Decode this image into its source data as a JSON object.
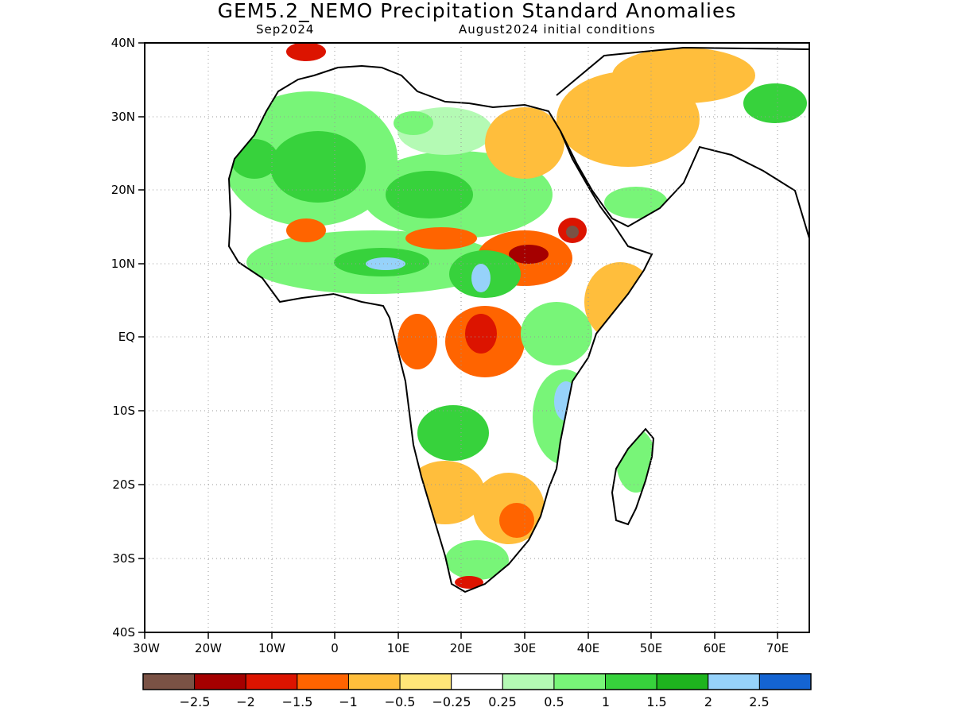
{
  "title": "GEM5.2_NEMO Precipitation Standard Anomalies",
  "subtitle_left": "Sep2024",
  "subtitle_right": "August2024 initial conditions",
  "map": {
    "lat_labels": [
      "40N",
      "30N",
      "20N",
      "10N",
      "EQ",
      "10S",
      "20S",
      "30S",
      "40S"
    ],
    "lon_labels": [
      "30W",
      "20W",
      "10W",
      "0",
      "10E",
      "20E",
      "30E",
      "40E",
      "50E",
      "60E",
      "70E"
    ]
  },
  "colorbar": {
    "colors": [
      "#7a5245",
      "#a50000",
      "#dc1400",
      "#ff6400",
      "#ffbe3c",
      "#ffe678",
      "#ffffff",
      "#b4fab4",
      "#78f578",
      "#37d23c",
      "#1eb41e",
      "#96d2fa",
      "#1464d2"
    ],
    "labels": [
      "−2.5",
      "−2",
      "−1.5",
      "−1",
      "−0.5",
      "−0.25",
      "0.25",
      "0.5",
      "1",
      "1.5",
      "2",
      "2.5"
    ]
  }
}
